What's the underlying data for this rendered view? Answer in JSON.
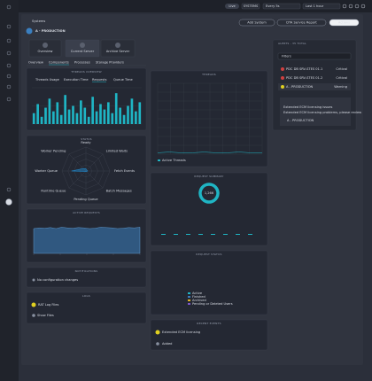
{
  "topbar": {
    "live": "Live",
    "systems": "SYSTEMS",
    "refresh": "Every 5s",
    "range": "Last 1 hour"
  },
  "header": {
    "breadcrumb": "Systems",
    "title": "A - PRODUCTION",
    "buttons": [
      "Add System",
      "DTA Service Report",
      "Actions"
    ]
  },
  "tiles": [
    "Overview",
    "Current Server",
    "Archive Server"
  ],
  "tabs": [
    "Overview",
    "Components",
    "Processes",
    "Storage Providers"
  ],
  "chart_data": [
    {
      "type": "bar",
      "title": "THREADS OVERVIEW",
      "tabs": [
        "Threads Usage",
        "Execution Time",
        "Requests",
        "Queue Time"
      ],
      "color": "#1fb5c4",
      "ylim": [
        0,
        100
      ],
      "values": [
        30,
        55,
        20,
        45,
        70,
        35,
        60,
        25,
        80,
        40,
        50,
        30,
        65,
        45,
        20,
        75,
        35,
        55,
        40,
        60,
        30,
        85,
        45,
        25,
        50,
        70,
        35,
        60
      ]
    },
    {
      "type": "radar",
      "title": "STATUS",
      "color": "#1f8fd6",
      "ylim": [
        0,
        100
      ],
      "categories": [
        "Ready",
        "Limited Waits",
        "Fetch Events",
        "Batch Messages",
        "Pending Queue",
        "Runtime Queue",
        "Worker Queue",
        "Worker Pending"
      ],
      "values": [
        10,
        5,
        8,
        3,
        3,
        3,
        60,
        15
      ]
    },
    {
      "type": "area",
      "title": "ACTIVE REQUESTS",
      "color": "#3a7fc0",
      "ylim": [
        0,
        100
      ],
      "values": [
        70,
        72,
        71,
        73,
        70,
        74,
        72,
        71,
        73,
        72,
        70,
        71,
        74,
        73,
        72,
        70,
        71,
        73,
        72,
        74
      ]
    },
    {
      "type": "line",
      "title": "THREADS",
      "ylim": [
        0,
        100
      ],
      "series": [
        {
          "name": "Active Threads",
          "color": "#1fb5c4",
          "values": [
            2,
            3,
            2,
            2,
            3,
            2,
            2,
            3,
            2,
            2
          ]
        }
      ]
    },
    {
      "type": "donut",
      "title": "REQUEST SUMMARY",
      "center_label": "1,266",
      "categories": [
        "Active",
        "Finished",
        "Archived",
        "Pending or Deleted Users"
      ],
      "colors": [
        "#1fb5c4",
        "#3a7fc0",
        "#e0b020",
        "#7a56c8"
      ],
      "values": [
        1266,
        0,
        0,
        0
      ]
    }
  ],
  "panels": {
    "status_legend": "REQUEST STATUS",
    "notifications": {
      "title": "NOTIFICATIONS",
      "text": "No configuration changes"
    },
    "logs": {
      "title": "LOGS",
      "items": [
        "RAT Log Files",
        "Show Files"
      ]
    },
    "events": {
      "title": "RECENT EVENTS",
      "items": [
        "Extended ECM licensing",
        "Added"
      ]
    }
  },
  "alerts": {
    "title": "ALERTS - 35 TOTAL",
    "filter": "Filters",
    "items": [
      {
        "name": "PDC DB SRV-STES 01.1",
        "status": "Critical"
      },
      {
        "name": "PDC DB SRV-STES 01.2",
        "status": "Critical"
      },
      {
        "name": "A - PRODUCTION",
        "status": "Warning"
      }
    ],
    "detail": {
      "title": "Extended ECM licensing issues",
      "text": "Extended ECM licensing problems, please review",
      "link": "A - PRODUCTION"
    }
  }
}
